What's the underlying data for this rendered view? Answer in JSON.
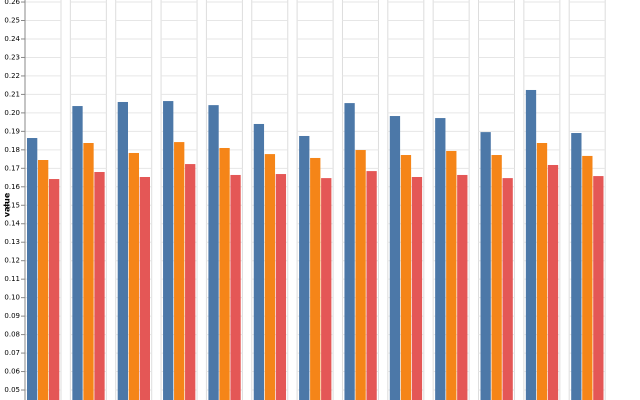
{
  "chart_data": {
    "type": "bar",
    "axis_label": "value",
    "ylim": [
      0.0446,
      0.2611
    ],
    "yticks": [
      {
        "value": 0.05,
        "label": "0.05"
      },
      {
        "value": 0.06,
        "label": "0.06"
      },
      {
        "value": 0.07,
        "label": "0.07"
      },
      {
        "value": 0.08,
        "label": "0.08"
      },
      {
        "value": 0.09,
        "label": "0.09"
      },
      {
        "value": 0.1,
        "label": "0.10"
      },
      {
        "value": 0.11,
        "label": "0.11"
      },
      {
        "value": 0.12,
        "label": "0.12"
      },
      {
        "value": 0.13,
        "label": "0.13"
      },
      {
        "value": 0.14,
        "label": "0.14"
      },
      {
        "value": 0.15,
        "label": "0.15"
      },
      {
        "value": 0.16,
        "label": "0.16"
      },
      {
        "value": 0.17,
        "label": "0.17"
      },
      {
        "value": 0.18,
        "label": "0.18"
      },
      {
        "value": 0.19,
        "label": "0.19"
      },
      {
        "value": 0.2,
        "label": "0.20"
      },
      {
        "value": 0.21,
        "label": "0.21"
      },
      {
        "value": 0.22,
        "label": "0.22"
      },
      {
        "value": 0.23,
        "label": "0.23"
      },
      {
        "value": 0.24,
        "label": "0.24"
      },
      {
        "value": 0.25,
        "label": "0.25"
      },
      {
        "value": 0.26,
        "label": "0.26"
      }
    ],
    "grid": true,
    "series": [
      {
        "color": "#4c78a8",
        "values": [
          0.1864,
          0.2037,
          0.2059,
          0.2064,
          0.2042,
          0.194,
          0.1875,
          0.2053,
          0.1983,
          0.1972,
          0.1896,
          0.2124,
          0.1891
        ]
      },
      {
        "color": "#f58518",
        "values": [
          0.1745,
          0.1837,
          0.1783,
          0.1842,
          0.181,
          0.1777,
          0.1756,
          0.1799,
          0.1772,
          0.1794,
          0.1772,
          0.1837,
          0.1767
        ]
      },
      {
        "color": "#e45756",
        "values": [
          0.1642,
          0.168,
          0.1653,
          0.1723,
          0.1664,
          0.1669,
          0.1647,
          0.1685,
          0.1653,
          0.1664,
          0.1647,
          0.1718,
          0.1658
        ]
      }
    ]
  }
}
